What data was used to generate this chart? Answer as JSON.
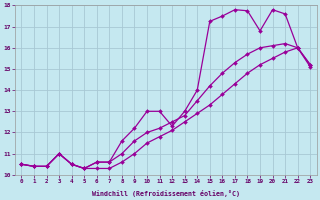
{
  "xlabel": "Windchill (Refroidissement éolien,°C)",
  "xlim": [
    -0.5,
    23.5
  ],
  "ylim": [
    10,
    18
  ],
  "bg_color": "#c5e8f0",
  "grid_color": "#a8c8d4",
  "line_color": "#990099",
  "line1_x": [
    0,
    1,
    2,
    3,
    4,
    5,
    6,
    7,
    8,
    9,
    10,
    11,
    12,
    13,
    14,
    15,
    16,
    17,
    18,
    19,
    20,
    21,
    22,
    23
  ],
  "line1_y": [
    10.5,
    10.4,
    10.4,
    11.0,
    10.5,
    10.3,
    10.6,
    10.6,
    11.6,
    12.2,
    13.0,
    13.0,
    12.3,
    13.0,
    14.0,
    17.25,
    17.5,
    17.8,
    17.75,
    16.8,
    17.8,
    17.6,
    16.0,
    15.1
  ],
  "line2_x": [
    0,
    1,
    2,
    3,
    4,
    5,
    6,
    7,
    8,
    9,
    10,
    11,
    12,
    13,
    14,
    15,
    16,
    17,
    18,
    19,
    20,
    21,
    22,
    23
  ],
  "line2_y": [
    10.5,
    10.4,
    10.4,
    11.0,
    10.5,
    10.3,
    10.6,
    10.6,
    11.0,
    11.6,
    12.0,
    12.2,
    12.5,
    12.8,
    13.5,
    14.2,
    14.8,
    15.3,
    15.7,
    16.0,
    16.1,
    16.2,
    16.0,
    15.2
  ],
  "line3_x": [
    0,
    1,
    2,
    3,
    4,
    5,
    6,
    7,
    8,
    9,
    10,
    11,
    12,
    13,
    14,
    15,
    16,
    17,
    18,
    19,
    20,
    21,
    22,
    23
  ],
  "line3_y": [
    10.5,
    10.4,
    10.4,
    11.0,
    10.5,
    10.3,
    10.3,
    10.3,
    10.6,
    11.0,
    11.5,
    11.8,
    12.1,
    12.5,
    12.9,
    13.3,
    13.8,
    14.3,
    14.8,
    15.2,
    15.5,
    15.8,
    16.0,
    15.2
  ]
}
